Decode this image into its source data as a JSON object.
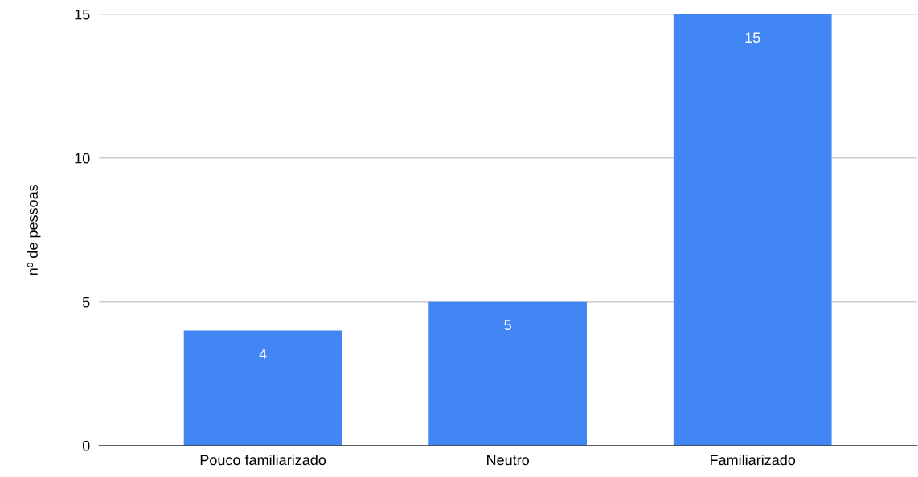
{
  "chart_data": {
    "type": "bar",
    "ylabel": "nº de pessoas",
    "categories": [
      "Pouco familiarizado",
      "Neutro",
      "Familiarizado"
    ],
    "values": [
      4,
      5,
      15
    ],
    "color": "#4285f4",
    "ylim": [
      0,
      15
    ],
    "yticks": [
      0,
      5,
      10,
      15
    ],
    "grid": "y",
    "data_labels": true
  }
}
